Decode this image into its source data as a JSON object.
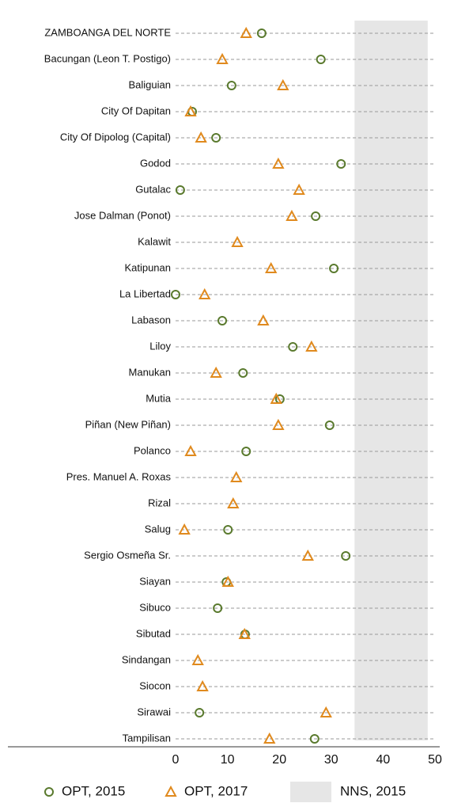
{
  "chart_data": {
    "type": "dot",
    "categories": [
      "ZAMBOANGA DEL NORTE",
      "Bacungan (Leon T. Postigo)",
      "Baliguian",
      "City Of Dapitan",
      "City Of Dipolog (Capital)",
      "Godod",
      "Gutalac",
      "Jose Dalman (Ponot)",
      "Kalawit",
      "Katipunan",
      "La Libertad",
      "Labason",
      "Liloy",
      "Manukan",
      "Mutia",
      "Piñan (New Piñan)",
      "Polanco",
      "Pres. Manuel A. Roxas",
      "Rizal",
      "Salug",
      "Sergio Osmeña Sr.",
      "Siayan",
      "Sibuco",
      "Sibutad",
      "Sindangan",
      "Siocon",
      "Sirawai",
      "Tampilisan"
    ],
    "series": [
      {
        "name": "OPT, 2015",
        "color": "#5a7a2e",
        "marker": "circle",
        "values": [
          16.6,
          28.0,
          10.8,
          3.2,
          7.8,
          31.9,
          0.9,
          27.0,
          null,
          30.5,
          0.0,
          9.0,
          22.6,
          13.0,
          20.1,
          29.7,
          13.6,
          null,
          null,
          10.1,
          32.8,
          9.8,
          8.1,
          13.4,
          null,
          null,
          4.6,
          26.8
        ]
      },
      {
        "name": "OPT, 2017",
        "color": "#e08a1e",
        "marker": "triangle",
        "values": [
          13.6,
          9.0,
          20.7,
          2.9,
          4.9,
          19.8,
          23.8,
          22.4,
          11.9,
          18.4,
          5.6,
          16.9,
          26.2,
          7.8,
          19.4,
          19.8,
          2.9,
          11.7,
          11.1,
          1.7,
          25.5,
          10.1,
          null,
          13.3,
          4.3,
          5.2,
          29.0,
          18.1
        ]
      }
    ],
    "shaded_region": {
      "name": "NNS, 2015",
      "range": [
        34.5,
        48.6
      ],
      "color": "#e6e6e6"
    },
    "xlim": [
      0,
      50
    ],
    "xticks": [
      0,
      10,
      20,
      30,
      40,
      50
    ],
    "legend": "bottom"
  }
}
